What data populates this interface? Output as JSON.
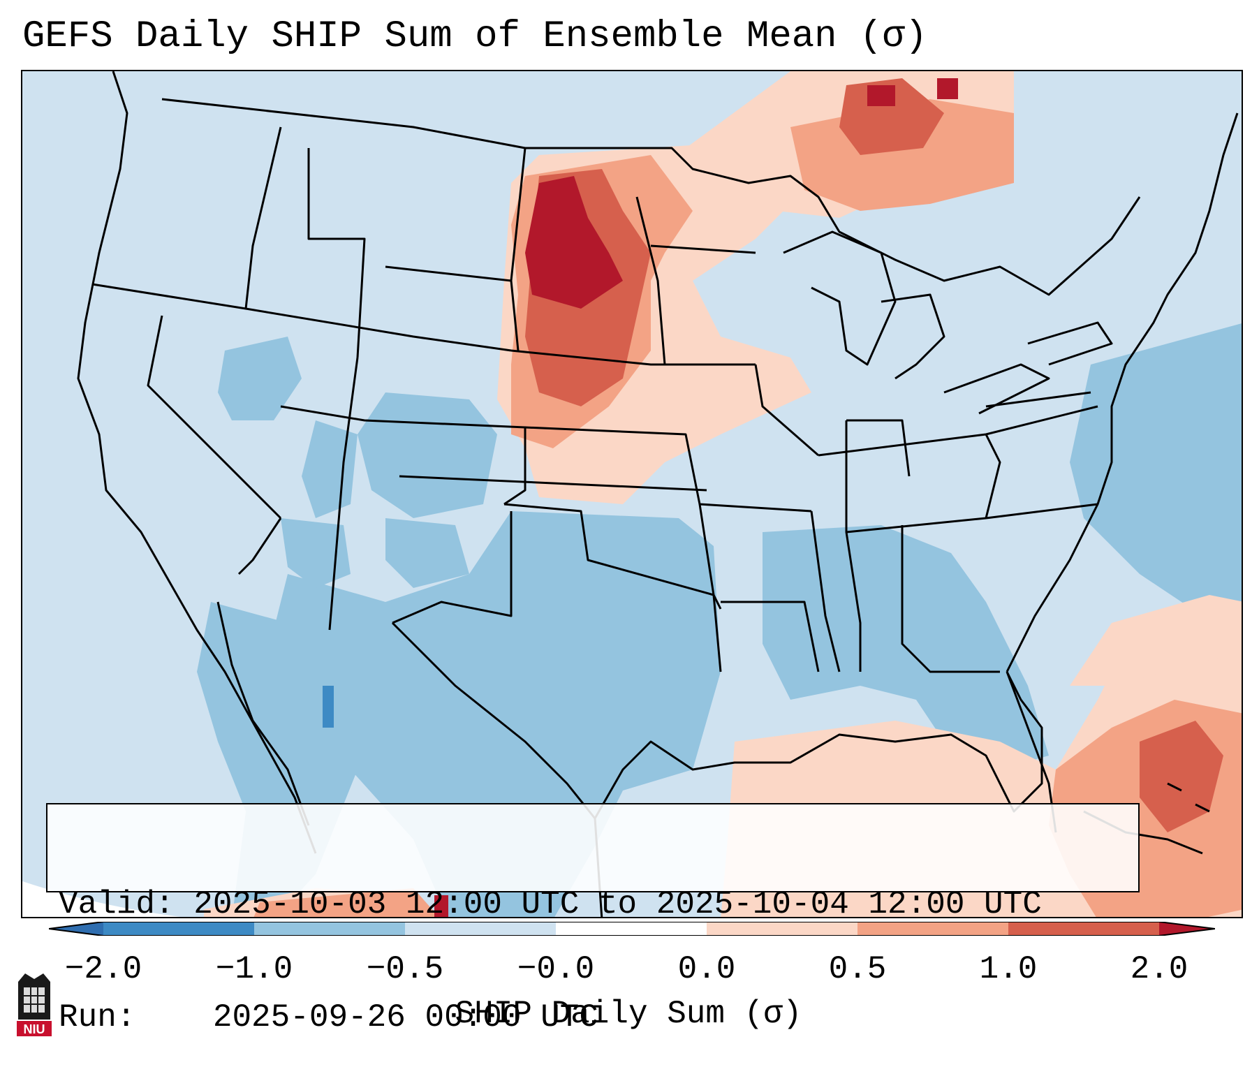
{
  "title": "GEFS Daily SHIP Sum of Ensemble Mean (σ)",
  "info": {
    "valid_label": "Valid:",
    "valid_value": "2025-10-03 12:00 UTC to 2025-10-04 12:00 UTC",
    "run_label": "Run:",
    "run_value": "2025-09-26 00:00 UTC"
  },
  "colorbar": {
    "label": "SHIP Daily Sum (σ)",
    "ticks": [
      "−2.0",
      "−1.0",
      "−0.5",
      "−0.0",
      "0.0",
      "0.5",
      "1.0",
      "2.0"
    ],
    "colors": [
      "#3d8ac4",
      "#94c4df",
      "#cfe2f0",
      "#fbd7c6",
      "#f3a385",
      "#d6604d"
    ],
    "under_color": "#2f6eb0",
    "over_color": "#b2182b"
  },
  "map": {
    "ocean_color": "#cfe2f0",
    "land_border_color": "#000000",
    "region": "CONUS"
  },
  "logo": {
    "text": "NIU",
    "color": "#c8102e"
  }
}
